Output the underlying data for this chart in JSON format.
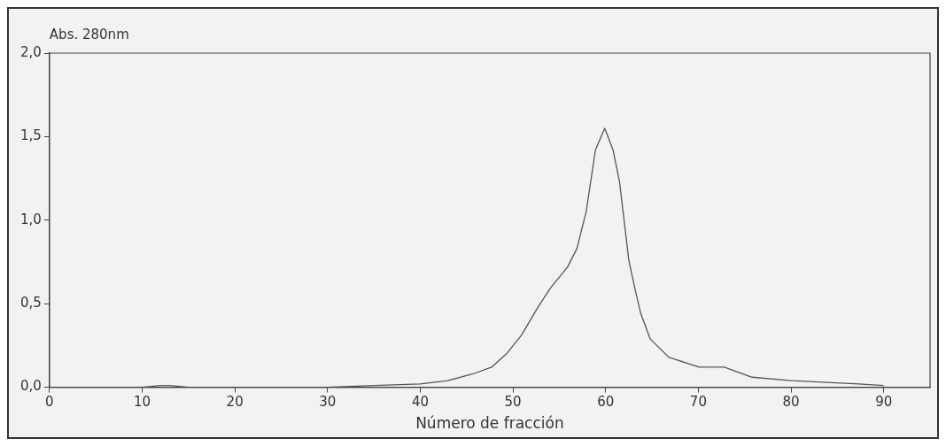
{
  "chart_data": {
    "type": "line",
    "xlabel": "Número de fracción",
    "ylabel": "Abs. 280nm",
    "x": [
      0,
      10,
      12,
      13,
      15,
      20,
      30,
      35,
      40,
      43,
      45.7,
      47.7,
      49.3,
      50.9,
      52.6,
      54,
      55.9,
      56.9,
      57.9,
      58.9,
      59.9,
      60.8,
      61.5,
      62.5,
      63.2,
      63.8,
      64.8,
      66.8,
      70.1,
      72.8,
      75.8,
      80,
      87.3,
      90
    ],
    "series": [
      {
        "color": "#555555",
        "values": [
          0,
          0,
          0.01,
          0.01,
          0,
          0,
          0,
          0.01,
          0.02,
          0.04,
          0.08,
          0.12,
          0.2,
          0.31,
          0.47,
          0.59,
          0.72,
          0.83,
          1.05,
          1.42,
          1.55,
          1.42,
          1.23,
          0.76,
          0.58,
          0.44,
          0.29,
          0.18,
          0.12,
          0.12,
          0.06,
          0.04,
          0.02,
          0.01
        ]
      }
    ],
    "xlim": [
      0,
      95
    ],
    "xticks": [
      0,
      10,
      20,
      30,
      40,
      50,
      60,
      70,
      80,
      90
    ],
    "ylim": [
      0,
      2
    ],
    "yticks": [
      {
        "value": 0,
        "label": "0,0"
      },
      {
        "value": 0.5,
        "label": "0,5"
      },
      {
        "value": 1,
        "label": "1,0"
      },
      {
        "value": 1.5,
        "label": "1,5"
      },
      {
        "value": 2,
        "label": "2,0"
      }
    ],
    "grid": false,
    "legend": false,
    "marker": "none",
    "line_style": "solid"
  }
}
